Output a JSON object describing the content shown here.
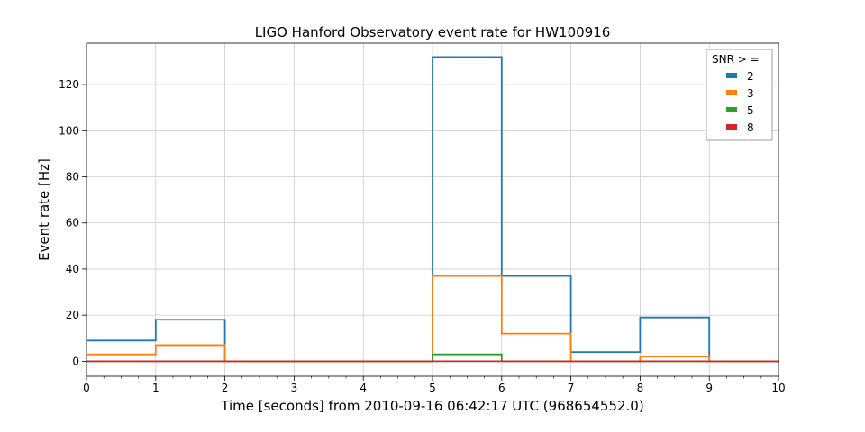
{
  "chart_data": {
    "type": "line",
    "title": "LIGO Hanford Observatory event rate for HW100916",
    "xlabel": "Time [seconds] from 2010-09-16 06:42:17 UTC (968654552.0)",
    "ylabel": "Event rate [Hz]",
    "xlim": [
      0,
      10
    ],
    "ylim": [
      -6.5,
      138
    ],
    "xticks": [
      0,
      1,
      2,
      3,
      4,
      5,
      6,
      7,
      8,
      9,
      10
    ],
    "yticks": [
      0,
      20,
      40,
      60,
      80,
      100,
      120
    ],
    "grid": true,
    "legend": {
      "title": "SNR > =",
      "position": "top-right"
    },
    "bin_edges": [
      0,
      1,
      2,
      3,
      4,
      5,
      6,
      7,
      8,
      9,
      10
    ],
    "series": [
      {
        "name": "2",
        "color": "#1f77b4",
        "values": [
          9,
          18,
          0,
          0,
          0,
          132,
          37,
          4,
          19,
          0
        ]
      },
      {
        "name": "3",
        "color": "#ff7f0e",
        "values": [
          3,
          7,
          0,
          0,
          0,
          37,
          12,
          0,
          2,
          0
        ]
      },
      {
        "name": "5",
        "color": "#2ca02c",
        "values": [
          0,
          0,
          0,
          0,
          0,
          3,
          0,
          0,
          0,
          0
        ]
      },
      {
        "name": "8",
        "color": "#d62728",
        "values": [
          0,
          0,
          0,
          0,
          0,
          0,
          0,
          0,
          0,
          0
        ]
      }
    ]
  }
}
